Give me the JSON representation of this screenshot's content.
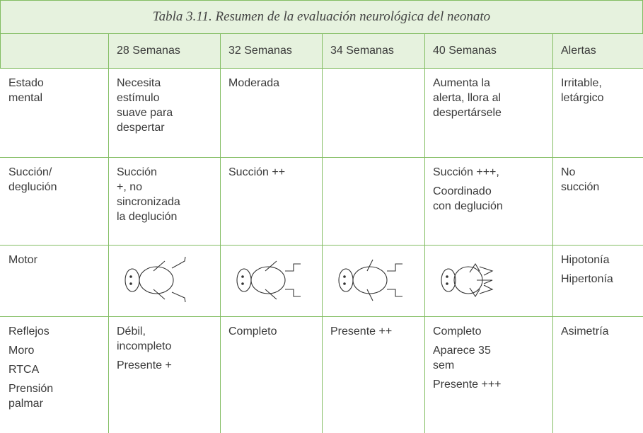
{
  "table": {
    "title": "Tabla 3.11. Resumen de la evaluación neurológica del neonato",
    "header": [
      "28 Semanas",
      "32 Semanas",
      "34 Semanas",
      "40 Semanas",
      "Alertas"
    ],
    "rows": [
      {
        "label": [
          [
            "Estado",
            "mental"
          ]
        ],
        "cells": [
          [
            [
              "Necesita",
              "estímulo",
              "suave para",
              "despertar"
            ]
          ],
          [
            [
              "Moderada"
            ]
          ],
          null,
          [
            [
              "Aumenta la",
              "alerta, llora al",
              "despertársele"
            ]
          ],
          [
            [
              "Irritable,",
              "letárgico"
            ]
          ]
        ]
      },
      {
        "label": [
          [
            "Succión/",
            "deglución"
          ]
        ],
        "cells": [
          [
            [
              "Succión",
              "+, no",
              "sincronizada",
              "la deglución"
            ]
          ],
          [
            [
              "Succión ++"
            ]
          ],
          null,
          [
            [
              "Succión +++,"
            ],
            [
              "Coordinado",
              "con deglución"
            ]
          ],
          [
            [
              "No",
              "succión"
            ]
          ]
        ]
      },
      {
        "label": [
          [
            "Motor"
          ]
        ],
        "cells": [
          null,
          null,
          null,
          null,
          [
            [
              "Hipotonía"
            ],
            [
              "Hipertonía"
            ]
          ]
        ]
      },
      {
        "label": [
          [
            "Reflejos"
          ],
          [
            "Moro"
          ],
          [
            "RTCA"
          ],
          [
            "Prensión",
            "palmar"
          ]
        ],
        "cells": [
          [
            [
              "Débil,",
              "incompleto"
            ],
            [
              "Presente +"
            ]
          ],
          [
            [
              "Completo"
            ]
          ],
          [
            [
              "Presente ++"
            ]
          ],
          [
            [
              "Completo"
            ],
            [
              "Aparece 35",
              "sem"
            ],
            [
              "Presente +++"
            ]
          ],
          [
            [
              "Asimetría"
            ]
          ]
        ]
      }
    ]
  }
}
